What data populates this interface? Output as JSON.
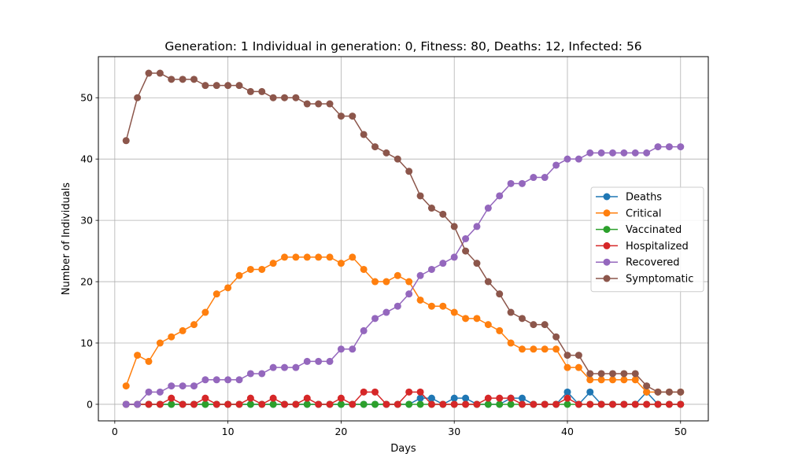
{
  "chart_data": {
    "type": "line",
    "title": "Generation: 1 Individual in generation: 0, Fitness: 80, Deaths: 12, Infected: 56",
    "xlabel": "Days",
    "ylabel": "Number of Individuals",
    "xlim": [
      -1.45,
      52.45
    ],
    "ylim": [
      -2.7,
      56.7
    ],
    "xticks": [
      0,
      10,
      20,
      30,
      40,
      50
    ],
    "yticks": [
      0,
      10,
      20,
      30,
      40,
      50
    ],
    "grid": true,
    "legend_position": "center-right",
    "x": [
      1,
      2,
      3,
      4,
      5,
      6,
      7,
      8,
      9,
      10,
      11,
      12,
      13,
      14,
      15,
      16,
      17,
      18,
      19,
      20,
      21,
      22,
      23,
      24,
      25,
      26,
      27,
      28,
      29,
      30,
      31,
      32,
      33,
      34,
      35,
      36,
      37,
      38,
      39,
      40,
      41,
      42,
      43,
      44,
      45,
      46,
      47,
      48,
      49,
      50
    ],
    "series": [
      {
        "name": "Deaths",
        "color": "#1f77b4",
        "values": [
          0,
          0,
          0,
          0,
          0,
          0,
          0,
          0,
          0,
          0,
          0,
          0,
          0,
          0,
          0,
          0,
          0,
          0,
          0,
          0,
          0,
          0,
          0,
          0,
          0,
          0,
          1,
          1,
          0,
          1,
          1,
          0,
          0,
          0,
          1,
          1,
          0,
          0,
          0,
          2,
          0,
          2,
          0,
          0,
          0,
          0,
          2,
          0,
          0,
          0
        ]
      },
      {
        "name": "Critical",
        "color": "#ff7f0e",
        "values": [
          3,
          8,
          7,
          10,
          11,
          12,
          13,
          15,
          18,
          19,
          21,
          22,
          22,
          23,
          24,
          24,
          24,
          24,
          24,
          23,
          24,
          22,
          20,
          20,
          21,
          20,
          17,
          16,
          16,
          15,
          14,
          14,
          13,
          12,
          10,
          9,
          9,
          9,
          9,
          6,
          6,
          4,
          4,
          4,
          4,
          4,
          2,
          2,
          2,
          2
        ]
      },
      {
        "name": "Vaccinated",
        "color": "#2ca02c",
        "values": [
          0,
          0,
          0,
          0,
          0,
          0,
          0,
          0,
          0,
          0,
          0,
          0,
          0,
          0,
          0,
          0,
          0,
          0,
          0,
          0,
          0,
          0,
          0,
          0,
          0,
          0,
          0,
          0,
          0,
          0,
          0,
          0,
          0,
          0,
          0,
          0,
          0,
          0,
          0,
          0,
          0,
          0,
          0,
          0,
          0,
          0,
          0,
          0,
          0,
          0
        ]
      },
      {
        "name": "Hospitalized",
        "color": "#d62728",
        "values": [
          0,
          0,
          0,
          0,
          1,
          0,
          0,
          1,
          0,
          0,
          0,
          1,
          0,
          1,
          0,
          0,
          1,
          0,
          0,
          1,
          0,
          2,
          2,
          0,
          0,
          2,
          2,
          0,
          0,
          0,
          0,
          0,
          1,
          1,
          1,
          0,
          0,
          0,
          0,
          1,
          0,
          0,
          0,
          0,
          0,
          0,
          0,
          0,
          0,
          0
        ]
      },
      {
        "name": "Recovered",
        "color": "#9467bd",
        "values": [
          0,
          0,
          2,
          2,
          3,
          3,
          3,
          4,
          4,
          4,
          4,
          5,
          5,
          6,
          6,
          6,
          7,
          7,
          7,
          9,
          9,
          12,
          14,
          15,
          16,
          18,
          21,
          22,
          23,
          24,
          27,
          29,
          32,
          34,
          36,
          36,
          37,
          37,
          39,
          40,
          40,
          41,
          41,
          41,
          41,
          41,
          41,
          42,
          42,
          42
        ]
      },
      {
        "name": "Symptomatic",
        "color": "#8c564b",
        "values": [
          43,
          50,
          54,
          54,
          53,
          53,
          53,
          52,
          52,
          52,
          52,
          51,
          51,
          50,
          50,
          50,
          49,
          49,
          49,
          47,
          47,
          44,
          42,
          41,
          40,
          38,
          34,
          32,
          31,
          29,
          25,
          23,
          20,
          18,
          15,
          14,
          13,
          13,
          11,
          8,
          8,
          5,
          5,
          5,
          5,
          5,
          3,
          2,
          2,
          2
        ]
      }
    ]
  }
}
